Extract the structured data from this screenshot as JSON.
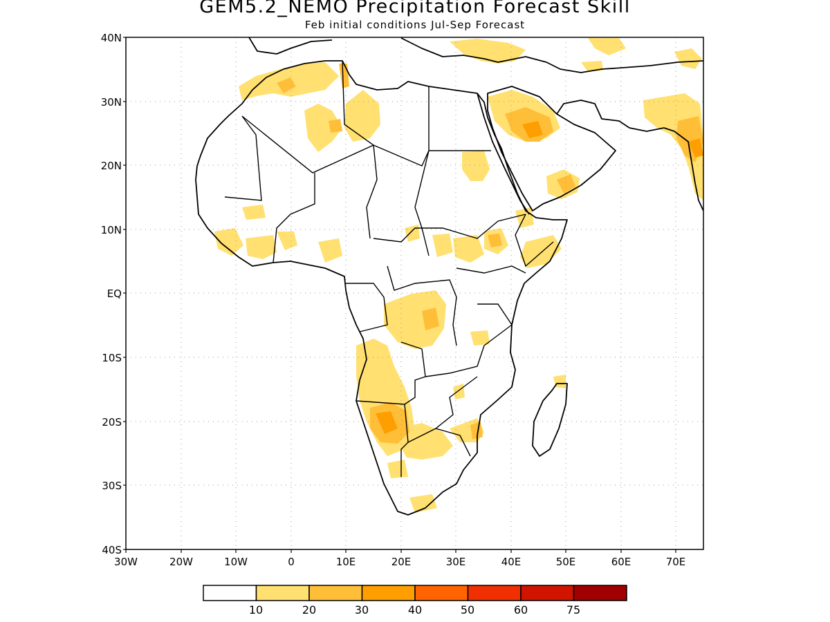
{
  "title": "GEM5.2_NEMO Precipitation Forecast Skill",
  "subtitle": "Feb initial conditions  Jul-Sep Forecast",
  "lat_labels": [
    "40N",
    "30N",
    "20N",
    "10N",
    "EQ",
    "10S",
    "20S",
    "30S",
    "40S"
  ],
  "lon_labels": [
    "30W",
    "20W",
    "10W",
    "0",
    "10E",
    "20E",
    "30E",
    "40E",
    "50E",
    "60E",
    "70E"
  ],
  "map": {
    "lon_range": [
      -30,
      75
    ],
    "lat_range": [
      -40,
      40
    ],
    "grid": "dotted",
    "projection": "equirectangular"
  },
  "colorbar": {
    "labels": [
      "10",
      "20",
      "30",
      "40",
      "50",
      "60",
      "75"
    ],
    "colors": [
      "#ffffff",
      "#ffe070",
      "#ffbe38",
      "#ff9e00",
      "#ff6400",
      "#f03000",
      "#d01400",
      "#a00000"
    ]
  }
}
